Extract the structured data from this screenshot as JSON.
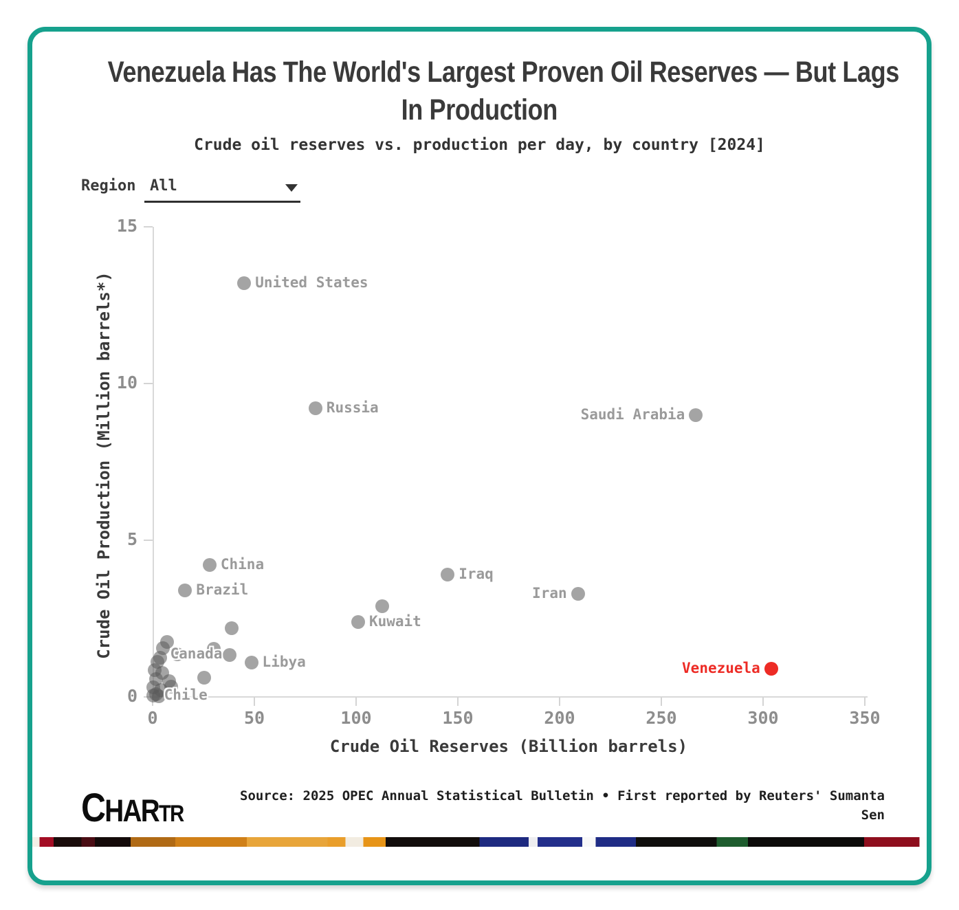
{
  "header": {
    "title_line1": "Venezuela Has The World's Largest Proven Oil Reserves — But Lags",
    "title_line2": "In Production",
    "subtitle": "Crude oil reserves vs. production per day, by country [2024]"
  },
  "controls": {
    "region_label": "Region",
    "region_value": "All",
    "dropdown_icon": "caret-down-icon"
  },
  "chart_data": {
    "type": "scatter",
    "title": "Venezuela Has The World's Largest Proven Oil Reserves — But Lags In Production",
    "subtitle": "Crude oil reserves vs. production per day, by country [2024]",
    "xlabel": "Crude Oil Reserves (Billion barrels)",
    "ylabel": "Crude Oil Production (Million barrels*)",
    "xlim": [
      0,
      350
    ],
    "ylim": [
      0,
      15
    ],
    "x_ticks": [
      0,
      50,
      100,
      150,
      200,
      250,
      300,
      350
    ],
    "y_ticks": [
      0,
      5,
      10,
      15
    ],
    "grid": false,
    "legend": "none",
    "point_fill": "rgba(90,90,90,0.55)",
    "label_color": "#9a9a9a",
    "highlight_color": "#ed2b25",
    "points": [
      {
        "label": "United States",
        "reserves": 45,
        "production": 13.2,
        "label_side": "right"
      },
      {
        "label": "Russia",
        "reserves": 80,
        "production": 9.2,
        "label_side": "right"
      },
      {
        "label": "Saudi Arabia",
        "reserves": 267,
        "production": 9.0,
        "label_side": "left"
      },
      {
        "label": "China",
        "reserves": 28,
        "production": 4.2,
        "label_side": "right"
      },
      {
        "label": "Iraq",
        "reserves": 145,
        "production": 3.9,
        "label_side": "right"
      },
      {
        "label": "Brazil",
        "reserves": 16,
        "production": 3.4,
        "label_side": "right"
      },
      {
        "label": "Iran",
        "reserves": 209,
        "production": 3.3,
        "label_side": "left"
      },
      {
        "label": "",
        "reserves": 113,
        "production": 2.9
      },
      {
        "label": "Kuwait",
        "reserves": 101,
        "production": 2.4,
        "label_side": "right"
      },
      {
        "label": "",
        "reserves": 39,
        "production": 2.2
      },
      {
        "label": "",
        "reserves": 7,
        "production": 1.75
      },
      {
        "label": "",
        "reserves": 5,
        "production": 1.56
      },
      {
        "label": "",
        "reserves": 30,
        "production": 1.53
      },
      {
        "label": "Canada",
        "reserves": 12,
        "production": 1.36,
        "label_side": "right",
        "label_dx": -26
      },
      {
        "label": "",
        "reserves": 38,
        "production": 1.34
      },
      {
        "label": "",
        "reserves": 3.7,
        "production": 1.25
      },
      {
        "label": "",
        "reserves": 2.4,
        "production": 1.12
      },
      {
        "label": "Libya",
        "reserves": 48.5,
        "production": 1.1,
        "label_side": "right"
      },
      {
        "label": "Venezuela",
        "reserves": 304,
        "production": 0.9,
        "label_side": "left",
        "highlight": true
      },
      {
        "label": "",
        "reserves": 1.0,
        "production": 0.86
      },
      {
        "label": "",
        "reserves": 4.7,
        "production": 0.77
      },
      {
        "label": "",
        "reserves": 25.4,
        "production": 0.61
      },
      {
        "label": "",
        "reserves": 1.7,
        "production": 0.57
      },
      {
        "label": "",
        "reserves": 8.1,
        "production": 0.5
      },
      {
        "label": "",
        "reserves": 9.1,
        "production": 0.33
      },
      {
        "label": "",
        "reserves": 0.3,
        "production": 0.31
      },
      {
        "label": "",
        "reserves": 4.1,
        "production": 0.22
      },
      {
        "label": "",
        "reserves": 1.7,
        "production": 0.09
      },
      {
        "label": "Chile",
        "reserves": 0.2,
        "production": 0.05,
        "label_side": "right"
      },
      {
        "label": "",
        "reserves": 3.0,
        "production": 0.03
      }
    ]
  },
  "footer": {
    "logo_text": "CHARTR",
    "source_line1": "Source: 2025 OPEC Annual Statistical Bulletin • First reported by Reuters' Sumanta",
    "source_line2": "Sen"
  },
  "colors": {
    "card_border": "#16a18d",
    "title_text": "#3a3a3a",
    "axis_text": "#3a3a3a",
    "tick_text": "#8d8d8d",
    "axis_line": "#d9d9d9"
  },
  "photo_strip": {
    "segments": [
      {
        "color": "#f3efe7",
        "to": 0.8
      },
      {
        "color": "#a30d24",
        "to": 2.4
      },
      {
        "color": "#1a0c0b",
        "to": 5.5
      },
      {
        "color": "#4a0d14",
        "to": 7.0
      },
      {
        "color": "#140a09",
        "to": 11.0
      },
      {
        "color": "#b06a15",
        "to": 16.0
      },
      {
        "color": "#d08018",
        "to": 24.0
      },
      {
        "color": "#e8a53a",
        "to": 33.0
      },
      {
        "color": "#e99e2b",
        "to": 35.0
      },
      {
        "color": "#f2ece1",
        "to": 37.0
      },
      {
        "color": "#e79417",
        "to": 39.5
      },
      {
        "color": "#120d0b",
        "to": 50.0
      },
      {
        "color": "#1e2a80",
        "to": 55.5
      },
      {
        "color": "#ededf0",
        "to": 56.5
      },
      {
        "color": "#232f8b",
        "to": 61.5
      },
      {
        "color": "#f8f8f8",
        "to": 63.0
      },
      {
        "color": "#1f2c85",
        "to": 67.5
      },
      {
        "color": "#0f0e0c",
        "to": 76.5
      },
      {
        "color": "#1e5c2e",
        "to": 80.0
      },
      {
        "color": "#0c0b0a",
        "to": 93.0
      },
      {
        "color": "#8e0e1d",
        "to": 99.2
      },
      {
        "color": "#fefefe",
        "to": 100.0
      }
    ]
  }
}
